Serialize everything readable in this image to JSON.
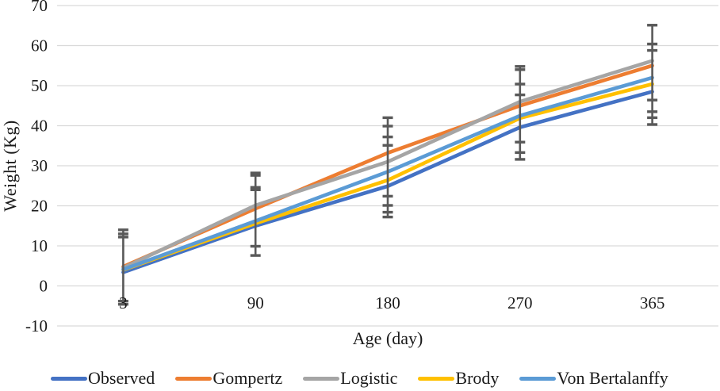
{
  "figure": {
    "background": "#ffffff",
    "text_color": "#1a1a1a"
  },
  "chart_data": {
    "type": "line",
    "title": "",
    "xlabel": "Age (day)",
    "ylabel": "Weight (Kg)",
    "categories": [
      "3",
      "90",
      "180",
      "270",
      "365"
    ],
    "series": [
      {
        "name": "Observed",
        "color": "#4472C4",
        "values": [
          3.4,
          15.0,
          24.9,
          39.6,
          48.5
        ]
      },
      {
        "name": "Gompertz",
        "color": "#ED7D31",
        "values": [
          4.8,
          19.3,
          33.2,
          45.0,
          55.0
        ]
      },
      {
        "name": "Logistic",
        "color": "#A5A5A5",
        "values": [
          4.5,
          20.1,
          31.0,
          46.0,
          56.2
        ]
      },
      {
        "name": "Brody",
        "color": "#FFC000",
        "values": [
          4.0,
          15.6,
          26.4,
          41.9,
          50.4
        ]
      },
      {
        "name": "Von Bertalanffy",
        "color": "#5B9BD5",
        "values": [
          4.1,
          16.2,
          28.5,
          42.5,
          52.0
        ]
      }
    ],
    "error_bars": {
      "color": "#595959",
      "per_category": [
        {
          "lo": -4.6,
          "hi": 14.0,
          "caps": [
            14.0,
            13.0,
            12.2,
            -4.6,
            -3.8
          ]
        },
        {
          "lo": 7.6,
          "hi": 28.2,
          "caps": [
            28.2,
            27.6,
            24.6,
            24.0,
            9.9,
            7.6
          ]
        },
        {
          "lo": 17.2,
          "hi": 42.0,
          "caps": [
            42.0,
            39.9,
            37.2,
            35.1,
            22.4,
            20.1,
            18.4,
            17.2
          ]
        },
        {
          "lo": 31.6,
          "hi": 54.8,
          "caps": [
            54.8,
            54.0,
            50.4,
            47.7,
            35.9,
            33.3,
            31.6
          ]
        },
        {
          "lo": 40.3,
          "hi": 65.1,
          "caps": [
            65.1,
            60.4,
            58.8,
            46.4,
            43.5,
            42.0,
            40.3
          ]
        }
      ]
    },
    "ylim": [
      -10,
      70
    ],
    "ytick_step": 10,
    "yticks": [
      "70",
      "60",
      "50",
      "40",
      "30",
      "20",
      "10",
      "0",
      "-10"
    ],
    "grid": true,
    "gridline_color": "#D9D9D9",
    "legend_position": "bottom"
  }
}
